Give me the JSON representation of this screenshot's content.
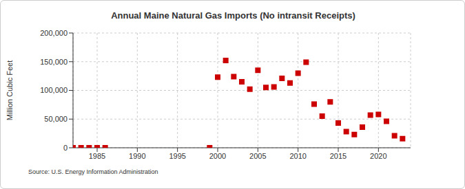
{
  "chart_data": {
    "type": "scatter",
    "title": "Annual Maine Natural Gas Imports (No intransit Receipts)",
    "y_label": "Million Cubic Feet",
    "source": "Source: U.S. Energy Information Administration",
    "x": [
      1982,
      1983,
      1984,
      1985,
      1986,
      1999,
      2000,
      2001,
      2002,
      2003,
      2004,
      2005,
      2006,
      2007,
      2008,
      2009,
      2010,
      2011,
      2012,
      2013,
      2014,
      2015,
      2016,
      2017,
      2018,
      2019,
      2020,
      2021,
      2022,
      2023
    ],
    "values": [
      0,
      0,
      0,
      0,
      0,
      0,
      123000,
      152000,
      124000,
      115000,
      102000,
      135000,
      105000,
      106000,
      121000,
      113000,
      130000,
      149000,
      76000,
      55000,
      80000,
      43000,
      28000,
      23000,
      36000,
      57000,
      58000,
      46000,
      21000,
      16000
    ],
    "color": "#cc0000",
    "marker": "square",
    "xlim": [
      1982,
      2024
    ],
    "xticks": [
      1985,
      1990,
      1995,
      2000,
      2005,
      2010,
      2015,
      2020
    ],
    "ylim": [
      0,
      200000
    ],
    "yticks": [
      0,
      {
        "value": 50000,
        "label": "50,000"
      },
      {
        "value": 100000,
        "label": "100,000"
      },
      {
        "value": 150000,
        "label": "150,000"
      },
      {
        "value": 200000,
        "label": "200,000"
      }
    ],
    "grid": true
  }
}
